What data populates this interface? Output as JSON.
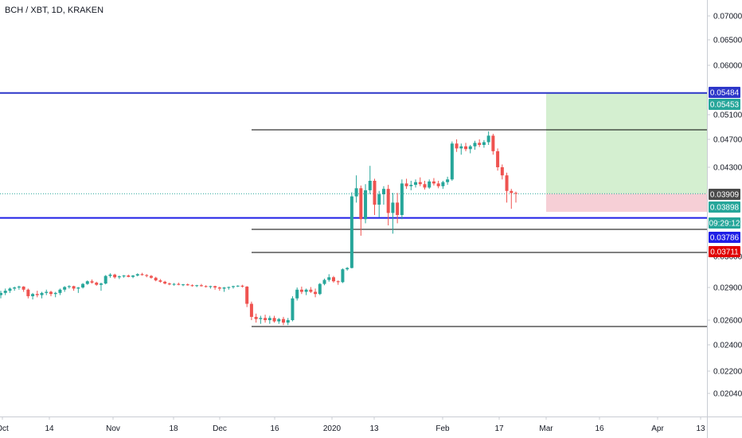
{
  "header": {
    "title": "BCH / XBT, 1D, KRAKEN"
  },
  "chart_data": {
    "type": "candlestick",
    "symbol": "BCH / XBT",
    "interval": "1D",
    "exchange": "KRAKEN",
    "y_axis": {
      "ticks": [
        "0.07000",
        "0.06500",
        "0.06000",
        "0.05100",
        "0.04700",
        "0.04300",
        "0.03600",
        "0.02900",
        "0.02600",
        "0.02400",
        "0.02200",
        "0.02040"
      ]
    },
    "x_axis": {
      "ticks": [
        "Oct",
        "14",
        "Nov",
        "18",
        "Dec",
        "16",
        "2020",
        "13",
        "Feb",
        "17",
        "Mar",
        "16",
        "Apr",
        "13"
      ]
    },
    "price_labels": [
      {
        "text": "0.05484",
        "color": "#2d37c9"
      },
      {
        "text": "0.05453",
        "color": "#26a69a"
      },
      {
        "text": "0.03909",
        "color": "#4a4a4a"
      },
      {
        "text": "0.03898",
        "color": "#26a69a"
      },
      {
        "text": "09:29:12",
        "color": "#26a69a"
      },
      {
        "text": "0.03786",
        "color": "#1f1fe6"
      },
      {
        "text": "0.03711",
        "color": "#e00000"
      }
    ],
    "horizontal_levels": [
      {
        "value": 0.05484,
        "color": "#2d37c9",
        "style": "thick"
      },
      {
        "value": 0.03786,
        "color": "#1f1fe6",
        "style": "thick"
      },
      {
        "value": 0.0483,
        "color": "#000000",
        "style": "thin"
      },
      {
        "value": 0.0352,
        "color": "#000000",
        "style": "thin"
      },
      {
        "value": 0.0334,
        "color": "#000000",
        "style": "thin"
      },
      {
        "value": 0.0254,
        "color": "#000000",
        "style": "thin"
      }
    ],
    "position_tool": {
      "entry": 0.03909,
      "target": 0.05484,
      "stop": 0.03711,
      "profit_color": "#d4efd0",
      "loss_color": "#f6cfd6"
    },
    "current_price": 0.03909,
    "colors": {
      "up": "#26a69a",
      "down": "#ef5350"
    },
    "candles": [
      [
        0.0283,
        0.0287,
        0.028,
        0.0285
      ],
      [
        0.0285,
        0.0289,
        0.0283,
        0.0287
      ],
      [
        0.0287,
        0.029,
        0.0285,
        0.0289
      ],
      [
        0.0289,
        0.0292,
        0.0287,
        0.029
      ],
      [
        0.029,
        0.0294,
        0.0288,
        0.0292
      ],
      [
        0.0292,
        0.0293,
        0.0286,
        0.0288
      ],
      [
        0.0288,
        0.0289,
        0.028,
        0.0282
      ],
      [
        0.0282,
        0.0285,
        0.0279,
        0.0284
      ],
      [
        0.0284,
        0.0287,
        0.0281,
        0.0283
      ],
      [
        0.0283,
        0.0286,
        0.028,
        0.0285
      ],
      [
        0.0285,
        0.0288,
        0.0283,
        0.0286
      ],
      [
        0.0286,
        0.0287,
        0.0282,
        0.0284
      ],
      [
        0.0284,
        0.0286,
        0.0281,
        0.0285
      ],
      [
        0.0285,
        0.0289,
        0.0283,
        0.0288
      ],
      [
        0.0288,
        0.0293,
        0.0286,
        0.0291
      ],
      [
        0.0291,
        0.0295,
        0.0289,
        0.0293
      ],
      [
        0.0293,
        0.0294,
        0.0287,
        0.0289
      ],
      [
        0.0289,
        0.0291,
        0.0285,
        0.029
      ],
      [
        0.029,
        0.03,
        0.0289,
        0.0298
      ],
      [
        0.0298,
        0.0306,
        0.0296,
        0.0304
      ],
      [
        0.0304,
        0.0308,
        0.0299,
        0.0301
      ],
      [
        0.0301,
        0.0303,
        0.0294,
        0.0296
      ],
      [
        0.0296,
        0.0301,
        0.0287,
        0.0299
      ],
      [
        0.0299,
        0.0318,
        0.0297,
        0.0316
      ],
      [
        0.0316,
        0.0322,
        0.0312,
        0.0319
      ],
      [
        0.0319,
        0.0321,
        0.031,
        0.0313
      ],
      [
        0.0313,
        0.0317,
        0.0309,
        0.0315
      ],
      [
        0.0315,
        0.0318,
        0.0312,
        0.0317
      ],
      [
        0.0317,
        0.0319,
        0.0313,
        0.0314
      ],
      [
        0.0314,
        0.0318,
        0.0311,
        0.0317
      ],
      [
        0.0317,
        0.0322,
        0.0315,
        0.032
      ],
      [
        0.032,
        0.0323,
        0.0317,
        0.0318
      ],
      [
        0.0318,
        0.032,
        0.0313,
        0.0316
      ],
      [
        0.0316,
        0.0318,
        0.031,
        0.0312
      ],
      [
        0.0312,
        0.0314,
        0.0304,
        0.0306
      ],
      [
        0.0306,
        0.0309,
        0.0301,
        0.0303
      ],
      [
        0.0303,
        0.0305,
        0.0297,
        0.0299
      ],
      [
        0.0299,
        0.0301,
        0.0295,
        0.0297
      ],
      [
        0.0297,
        0.03,
        0.0294,
        0.0298
      ],
      [
        0.0298,
        0.0301,
        0.0295,
        0.0296
      ],
      [
        0.0296,
        0.0298,
        0.0293,
        0.0297
      ],
      [
        0.0297,
        0.0299,
        0.0294,
        0.0295
      ],
      [
        0.0295,
        0.0297,
        0.0292,
        0.0294
      ],
      [
        0.0294,
        0.0296,
        0.0291,
        0.0295
      ],
      [
        0.0295,
        0.0298,
        0.0292,
        0.0293
      ],
      [
        0.0293,
        0.0295,
        0.029,
        0.0292
      ],
      [
        0.0292,
        0.0294,
        0.0289,
        0.0293
      ],
      [
        0.0293,
        0.0294,
        0.0288,
        0.029
      ],
      [
        0.029,
        0.0292,
        0.0287,
        0.0289
      ],
      [
        0.0289,
        0.0291,
        0.0286,
        0.029
      ],
      [
        0.029,
        0.0292,
        0.0288,
        0.0291
      ],
      [
        0.0291,
        0.0294,
        0.0289,
        0.0293
      ],
      [
        0.0293,
        0.0295,
        0.0291,
        0.0294
      ],
      [
        0.0294,
        0.0296,
        0.029,
        0.0292
      ],
      [
        0.0292,
        0.0293,
        0.0272,
        0.0275
      ],
      [
        0.0275,
        0.0277,
        0.026,
        0.0263
      ],
      [
        0.0263,
        0.0266,
        0.0258,
        0.0261
      ],
      [
        0.0261,
        0.0264,
        0.0257,
        0.0262
      ],
      [
        0.0262,
        0.0265,
        0.0258,
        0.026
      ],
      [
        0.026,
        0.0264,
        0.0257,
        0.0262
      ],
      [
        0.0262,
        0.0264,
        0.0258,
        0.0259
      ],
      [
        0.0259,
        0.0262,
        0.0257,
        0.0261
      ],
      [
        0.0261,
        0.0263,
        0.0256,
        0.0258
      ],
      [
        0.0258,
        0.0262,
        0.0256,
        0.026
      ],
      [
        0.026,
        0.0282,
        0.0259,
        0.028
      ],
      [
        0.028,
        0.029,
        0.0278,
        0.0288
      ],
      [
        0.0288,
        0.0292,
        0.0284,
        0.0286
      ],
      [
        0.0286,
        0.0289,
        0.0283,
        0.0288
      ],
      [
        0.0288,
        0.0291,
        0.0285,
        0.0286
      ],
      [
        0.0286,
        0.0289,
        0.0281,
        0.0284
      ],
      [
        0.0284,
        0.03,
        0.0283,
        0.0298
      ],
      [
        0.0298,
        0.031,
        0.0295,
        0.0307
      ],
      [
        0.0307,
        0.032,
        0.0303,
        0.0313
      ],
      [
        0.0313,
        0.0316,
        0.0301,
        0.0304
      ],
      [
        0.0304,
        0.0306,
        0.0296,
        0.0302
      ],
      [
        0.0302,
        0.0333,
        0.03,
        0.0331
      ],
      [
        0.0331,
        0.0336,
        0.0328,
        0.0334
      ],
      [
        0.0334,
        0.0393,
        0.0333,
        0.0389
      ],
      [
        0.0389,
        0.0418,
        0.0386,
        0.0399
      ],
      [
        0.0399,
        0.0403,
        0.037,
        0.0378
      ],
      [
        0.0378,
        0.0405,
        0.0376,
        0.0396
      ],
      [
        0.0396,
        0.0432,
        0.039,
        0.041
      ],
      [
        0.041,
        0.0413,
        0.038,
        0.0385
      ],
      [
        0.0385,
        0.0395,
        0.0379,
        0.039
      ],
      [
        0.039,
        0.0402,
        0.0385,
        0.0398
      ],
      [
        0.0398,
        0.0404,
        0.0375,
        0.0381
      ],
      [
        0.0381,
        0.0392,
        0.0371,
        0.0386
      ],
      [
        0.0386,
        0.0392,
        0.0376,
        0.038
      ],
      [
        0.038,
        0.0412,
        0.0378,
        0.0406
      ],
      [
        0.0406,
        0.0413,
        0.0398,
        0.0402
      ],
      [
        0.0402,
        0.041,
        0.0396,
        0.0404
      ],
      [
        0.0404,
        0.0412,
        0.04,
        0.0408
      ],
      [
        0.0408,
        0.0415,
        0.0402,
        0.0405
      ],
      [
        0.0405,
        0.041,
        0.0397,
        0.04
      ],
      [
        0.04,
        0.0412,
        0.0398,
        0.0409
      ],
      [
        0.0409,
        0.0414,
        0.0403,
        0.0406
      ],
      [
        0.0406,
        0.041,
        0.0399,
        0.0402
      ],
      [
        0.0402,
        0.041,
        0.0398,
        0.0408
      ],
      [
        0.0408,
        0.0416,
        0.0404,
        0.0412
      ],
      [
        0.0412,
        0.0467,
        0.041,
        0.0464
      ],
      [
        0.0464,
        0.047,
        0.0452,
        0.0457
      ],
      [
        0.0457,
        0.0464,
        0.0448,
        0.046
      ],
      [
        0.046,
        0.0465,
        0.0453,
        0.0456
      ],
      [
        0.0456,
        0.0462,
        0.045,
        0.046
      ],
      [
        0.046,
        0.0468,
        0.0455,
        0.0465
      ],
      [
        0.0465,
        0.047,
        0.0459,
        0.0462
      ],
      [
        0.0462,
        0.0469,
        0.0458,
        0.0466
      ],
      [
        0.0466,
        0.0483,
        0.0462,
        0.0476
      ],
      [
        0.0476,
        0.0479,
        0.0448,
        0.0453
      ],
      [
        0.0453,
        0.0457,
        0.0425,
        0.043
      ],
      [
        0.043,
        0.0434,
        0.0412,
        0.0418
      ],
      [
        0.0418,
        0.0422,
        0.0386,
        0.0395
      ],
      [
        0.0395,
        0.0398,
        0.0383,
        0.0392
      ],
      [
        0.0392,
        0.0394,
        0.0386,
        0.0391
      ]
    ]
  }
}
